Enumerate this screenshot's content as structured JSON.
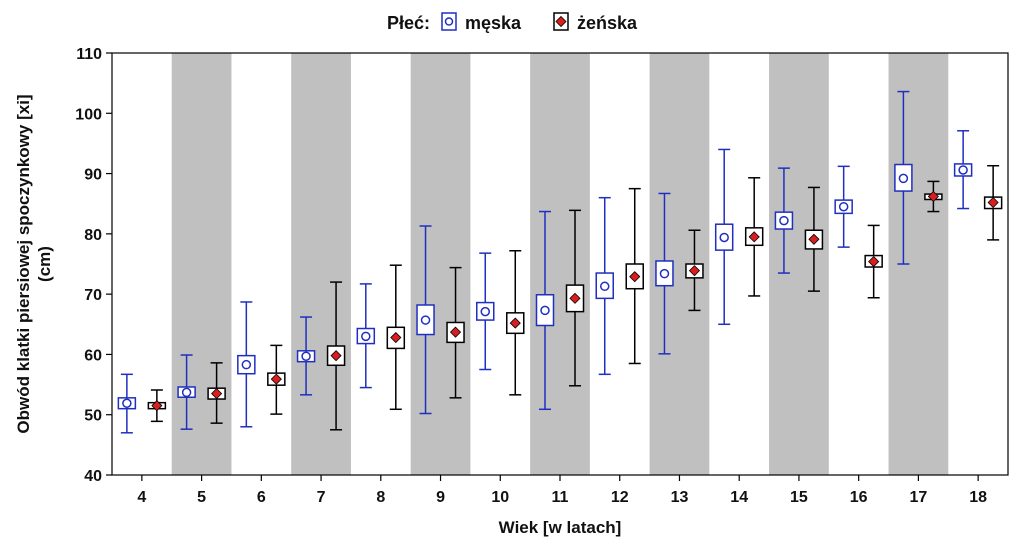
{
  "chart_data": {
    "type": "box",
    "legend": {
      "title": "Płeć:",
      "position": "top-center"
    },
    "xlabel": "Wiek [w latach]",
    "ylabel_lines": [
      "Obwód klatki piersiowej spoczynkowy [xi]",
      "(cm)"
    ],
    "ylim": [
      40,
      110
    ],
    "yticks": [
      40,
      50,
      60,
      70,
      80,
      90,
      100,
      110
    ],
    "categories": [
      "4",
      "5",
      "6",
      "7",
      "8",
      "9",
      "10",
      "11",
      "12",
      "13",
      "14",
      "15",
      "16",
      "17",
      "18"
    ],
    "shaded_categories": [
      "5",
      "7",
      "9",
      "11",
      "13",
      "15",
      "17"
    ],
    "series": [
      {
        "name": "męska",
        "color": "#1f2fbf",
        "marker": "circle",
        "mean": [
          51.9,
          53.7,
          58.3,
          59.7,
          63.0,
          65.7,
          67.1,
          67.3,
          71.3,
          73.4,
          79.4,
          82.2,
          84.5,
          89.2,
          90.6
        ],
        "box_low": [
          51.0,
          52.9,
          56.8,
          58.8,
          61.8,
          63.3,
          65.7,
          64.8,
          69.3,
          71.4,
          77.3,
          80.8,
          83.4,
          87.1,
          89.6
        ],
        "box_high": [
          52.8,
          54.6,
          59.8,
          60.6,
          64.3,
          68.2,
          68.6,
          69.9,
          73.5,
          75.5,
          81.6,
          83.6,
          85.6,
          91.5,
          91.6
        ],
        "whisker_low": [
          47.0,
          47.6,
          48.0,
          53.3,
          54.5,
          50.2,
          57.5,
          50.9,
          56.7,
          60.1,
          65.0,
          73.5,
          77.8,
          75.0,
          84.2
        ],
        "whisker_high": [
          56.7,
          59.9,
          68.7,
          66.2,
          71.7,
          81.3,
          76.8,
          83.7,
          86.0,
          86.7,
          94.0,
          90.9,
          91.2,
          103.6,
          97.1
        ]
      },
      {
        "name": "żeńska",
        "color": "#000000",
        "marker": "diamond",
        "marker_color": "#d81e1e",
        "mean": [
          51.5,
          53.5,
          55.9,
          59.8,
          62.8,
          63.7,
          65.2,
          69.3,
          72.9,
          73.9,
          79.5,
          79.1,
          75.4,
          86.2,
          85.2
        ],
        "box_low": [
          51.0,
          52.6,
          54.9,
          58.2,
          61.0,
          62.0,
          63.5,
          67.1,
          70.9,
          72.7,
          78.1,
          77.5,
          74.5,
          85.7,
          84.2
        ],
        "box_high": [
          52.0,
          54.4,
          56.9,
          61.4,
          64.5,
          65.3,
          66.9,
          71.5,
          75.0,
          75.0,
          81.0,
          80.6,
          76.4,
          86.6,
          86.1
        ],
        "whisker_low": [
          48.9,
          48.6,
          50.1,
          47.5,
          50.9,
          52.8,
          53.3,
          54.8,
          58.5,
          67.3,
          69.7,
          70.5,
          69.4,
          83.7,
          79.0
        ],
        "whisker_high": [
          54.1,
          58.6,
          61.5,
          72.0,
          74.8,
          74.4,
          77.2,
          83.9,
          87.5,
          80.6,
          89.3,
          87.7,
          81.4,
          88.7,
          91.3
        ]
      }
    ]
  }
}
